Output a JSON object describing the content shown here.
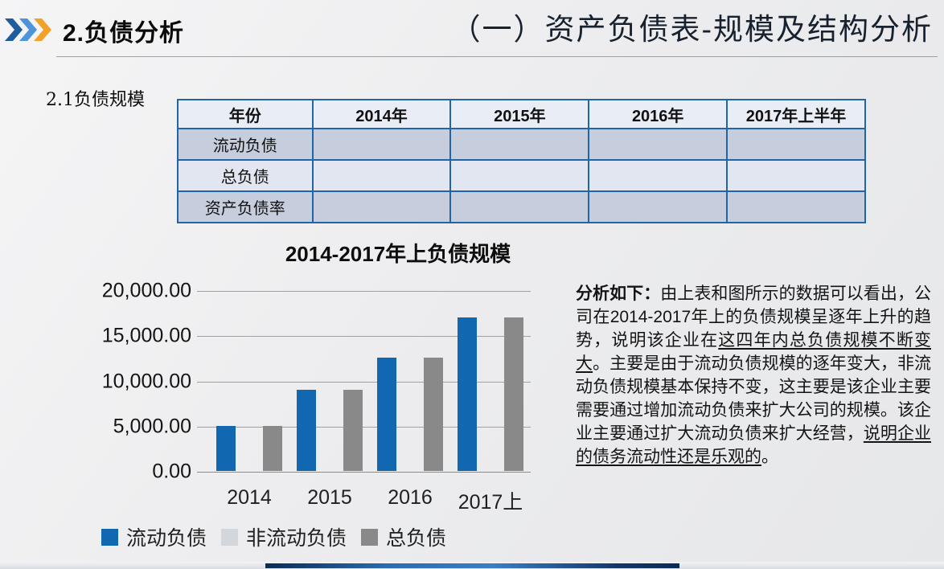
{
  "header": {
    "title": "2.负债分析",
    "subtitle": "（一）资产负债表-规模及结构分析",
    "chevron_colors": [
      "#1E5C9B",
      "#4E94DB",
      "#F0A22A"
    ]
  },
  "section_label": "2.1负债规模",
  "table": {
    "columns": [
      "年份",
      "2014年",
      "2015年",
      "2016年",
      "2017年上半年"
    ],
    "rows": [
      {
        "label": "流动负债",
        "values": [
          "",
          "",
          "",
          ""
        ]
      },
      {
        "label": "总负债",
        "values": [
          "",
          "",
          "",
          ""
        ]
      },
      {
        "label": "资产负债率",
        "values": [
          "",
          "",
          "",
          ""
        ]
      }
    ],
    "border_color": "#2264A6",
    "header_bg": "#E9EDF6",
    "band_bg": "#C6CEDD",
    "alt_bg": "#E2E6F0"
  },
  "chart_data": {
    "type": "bar",
    "title": "2014-2017年上负债规模",
    "categories": [
      "2014",
      "2015",
      "2016",
      "2017上"
    ],
    "series": [
      {
        "name": "流动负债",
        "color": "#1268B0",
        "values": [
          5000,
          9000,
          12500,
          17000
        ]
      },
      {
        "name": "非流动负债",
        "color": "#D3D6DB",
        "values": [
          0,
          0,
          0,
          0
        ]
      },
      {
        "name": "总负债",
        "color": "#898989",
        "values": [
          5000,
          9000,
          12500,
          17000
        ]
      }
    ],
    "ylim": [
      0,
      20000
    ],
    "ytick_labels": [
      "20,000.00",
      "15,000.00",
      "10,000.00",
      "5,000.00",
      "0.00"
    ],
    "xlabel": "",
    "ylabel": "",
    "grid": true,
    "legend_position": "bottom"
  },
  "analysis": {
    "segments": [
      {
        "text": "分析如下：",
        "bold": true
      },
      {
        "text": "由上表和图所示的数据可以看出，公司在2014-2017年上的负债规模呈逐年上升的趋势，说明该企业在"
      },
      {
        "text": "这四年内总负债规模不断变大",
        "underline": true
      },
      {
        "text": "。主要是由于流动负债规模的逐年变大，非流动负债规模基本保持不变，这主要是该企业主要需要通过增加流动负债来扩大公司的规模。该企业主要通过扩大流动负债来扩大经营，"
      },
      {
        "text": "说明企业的债务流动性还是乐观的",
        "underline": true
      },
      {
        "text": "。"
      }
    ]
  },
  "footer": {
    "bar_gradient": [
      "#0A2C55",
      "#2C6CB0",
      "#3A7EC4",
      "#12386A"
    ]
  }
}
